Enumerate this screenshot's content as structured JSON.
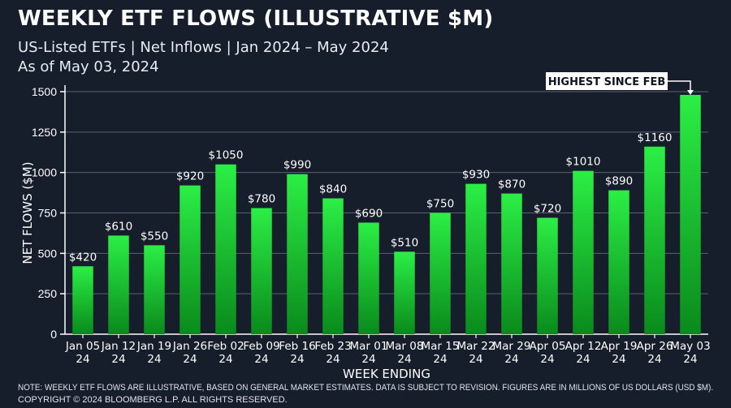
{
  "header": {
    "title": "WEEKLY ETF FLOWS (ILLUSTRATIVE $M)",
    "subtitle": "US-Listed ETFs | Net Inflows | Jan 2024 – May 2024",
    "as_of": "As of May 03, 2024"
  },
  "footer": {
    "note": "NOTE: WEEKLY ETF FLOWS ARE ILLUSTRATIVE, BASED ON GENERAL MARKET ESTIMATES. DATA IS SUBJECT TO REVISION. FIGURES ARE IN MILLIONS OF US DOLLARS (USD $M).",
    "copyright": "COPYRIGHT © 2024 BLOOMBERG L.P. ALL RIGHTS RESERVED."
  },
  "colors": {
    "background": "#161d2b",
    "bar_top": "#2bef45",
    "bar_bottom": "#0a8a1c",
    "grid": "#5a6272",
    "callout_bg": "#ffffff",
    "callout_text": "#0e1420"
  },
  "chart_data": {
    "type": "bar",
    "xlabel": "WEEK ENDING",
    "ylabel": "NET FLOWS ($M)",
    "ylim": [
      0,
      1500
    ],
    "yticks": [
      0,
      250,
      500,
      750,
      1000,
      1250,
      1500
    ],
    "grid": true,
    "categories": [
      [
        "Jan 05",
        "24"
      ],
      [
        "Jan 12",
        "24"
      ],
      [
        "Jan 19",
        "24"
      ],
      [
        "Jan 26",
        "24"
      ],
      [
        "Feb 02",
        "24"
      ],
      [
        "Feb 09",
        "24"
      ],
      [
        "Feb 16",
        "24"
      ],
      [
        "Feb 23",
        "24"
      ],
      [
        "Mar 01",
        "24"
      ],
      [
        "Mar 08",
        "24"
      ],
      [
        "Mar 15",
        "24"
      ],
      [
        "Mar 22",
        "24"
      ],
      [
        "Mar 29",
        "24"
      ],
      [
        "Apr 05",
        "24"
      ],
      [
        "Apr 12",
        "24"
      ],
      [
        "Apr 19",
        "24"
      ],
      [
        "Apr 26",
        "24"
      ],
      [
        "May 03",
        "24"
      ]
    ],
    "values": [
      420,
      610,
      550,
      920,
      1050,
      780,
      990,
      840,
      690,
      510,
      750,
      930,
      870,
      720,
      1010,
      890,
      1160,
      1480
    ],
    "labels": [
      "$420",
      "$610",
      "$550",
      "$920",
      "$1050",
      "$780",
      "$990",
      "$840",
      "$690",
      "$510",
      "$750",
      "$930",
      "$870",
      "$720",
      "$1010",
      "$890",
      "$1160",
      ""
    ],
    "annotation": {
      "text": "HIGHEST SINCE FEB",
      "category_index": 17
    }
  }
}
